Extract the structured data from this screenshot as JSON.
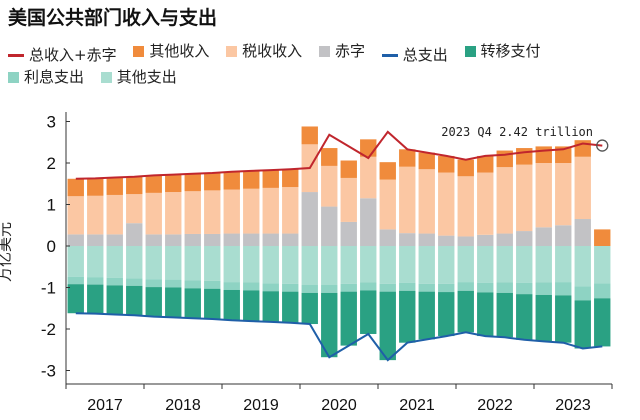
{
  "chart_data": {
    "type": "bar",
    "title": "美国公共部门收入与支出",
    "ylabel": "万亿美元",
    "xlabel": "",
    "ylim": [
      -3.3,
      3.3
    ],
    "yticks": [
      -3,
      -2,
      -1,
      0,
      1,
      2,
      3
    ],
    "years": [
      "2017",
      "2018",
      "2019",
      "2020",
      "2021",
      "2022",
      "2023"
    ],
    "quarters": [
      "2017Q1",
      "2017Q2",
      "2017Q3",
      "2017Q4",
      "2018Q1",
      "2018Q2",
      "2018Q3",
      "2018Q4",
      "2019Q1",
      "2019Q2",
      "2019Q3",
      "2019Q4",
      "2020Q1",
      "2020Q2",
      "2020Q3",
      "2020Q4",
      "2021Q1",
      "2021Q2",
      "2021Q3",
      "2021Q4",
      "2022Q1",
      "2022Q2",
      "2022Q3",
      "2022Q4",
      "2023Q1",
      "2023Q2",
      "2023Q3",
      "2023Q4"
    ],
    "grid": false,
    "legend_position": "top",
    "annotation": "2023 Q4 2.42 trillion",
    "series": [
      {
        "name": "总收入+赤字",
        "kind": "line",
        "color": "#c0262d",
        "values": [
          1.62,
          1.63,
          1.65,
          1.67,
          1.7,
          1.72,
          1.74,
          1.76,
          1.79,
          1.81,
          1.83,
          1.85,
          1.88,
          2.68,
          2.4,
          2.12,
          2.75,
          2.33,
          2.25,
          2.17,
          2.08,
          2.17,
          2.2,
          2.26,
          2.3,
          2.33,
          2.47,
          2.42
        ]
      },
      {
        "name": "其他收入",
        "kind": "bar",
        "color": "#f08b3c",
        "values": [
          0.42,
          0.42,
          0.42,
          0.42,
          0.42,
          0.42,
          0.42,
          0.42,
          0.43,
          0.43,
          0.43,
          0.43,
          0.43,
          0.43,
          0.42,
          0.42,
          0.42,
          0.42,
          0.4,
          0.4,
          0.4,
          0.4,
          0.4,
          0.4,
          0.4,
          0.4,
          0.4,
          0.4
        ]
      },
      {
        "name": "税收收入",
        "kind": "bar",
        "color": "#fbc7a3",
        "values": [
          0.92,
          0.93,
          0.95,
          0.7,
          1.0,
          1.02,
          1.03,
          1.05,
          1.06,
          1.08,
          1.1,
          1.12,
          1.15,
          0.98,
          1.06,
          1.0,
          1.2,
          1.6,
          1.55,
          1.52,
          1.45,
          1.5,
          1.6,
          1.6,
          1.55,
          1.5,
          1.5,
          0.0
        ]
      },
      {
        "name": "赤字",
        "kind": "bar",
        "color": "#c2c2c5",
        "values": [
          0.28,
          0.28,
          0.28,
          0.55,
          0.28,
          0.28,
          0.29,
          0.29,
          0.3,
          0.3,
          0.3,
          0.3,
          1.3,
          0.95,
          0.58,
          1.15,
          0.4,
          0.31,
          0.3,
          0.25,
          0.23,
          0.27,
          0.3,
          0.36,
          0.45,
          0.5,
          0.65,
          0.0
        ]
      },
      {
        "name": "总支出",
        "kind": "line",
        "color": "#1f5fa8",
        "values": [
          -1.62,
          -1.63,
          -1.65,
          -1.67,
          -1.7,
          -1.72,
          -1.74,
          -1.76,
          -1.79,
          -1.81,
          -1.83,
          -1.85,
          -1.88,
          -2.68,
          -2.4,
          -2.12,
          -2.75,
          -2.33,
          -2.25,
          -2.17,
          -2.08,
          -2.17,
          -2.2,
          -2.26,
          -2.3,
          -2.33,
          -2.47,
          -2.42
        ]
      },
      {
        "name": "转移支付",
        "kind": "bar",
        "color": "#2aa183",
        "values": [
          -0.7,
          -0.7,
          -0.7,
          -0.71,
          -0.71,
          -0.72,
          -0.72,
          -0.73,
          -0.73,
          -0.74,
          -0.74,
          -0.75,
          -0.75,
          -1.55,
          -1.3,
          -1.05,
          -1.65,
          -1.25,
          -1.15,
          -1.06,
          -1.0,
          -1.05,
          -1.07,
          -1.1,
          -1.12,
          -1.14,
          -1.16,
          -1.16
        ]
      },
      {
        "name": "利息支出",
        "kind": "bar",
        "color": "#8ed3c3",
        "values": [
          -0.18,
          -0.18,
          -0.18,
          -0.18,
          -0.19,
          -0.19,
          -0.19,
          -0.19,
          -0.19,
          -0.19,
          -0.19,
          -0.19,
          -0.19,
          -0.19,
          -0.19,
          -0.19,
          -0.19,
          -0.19,
          -0.19,
          -0.2,
          -0.21,
          -0.23,
          -0.25,
          -0.27,
          -0.3,
          -0.32,
          -0.34,
          -0.36
        ]
      },
      {
        "name": "其他支出",
        "kind": "bar",
        "color": "#a9ddd0",
        "values": [
          -0.74,
          -0.75,
          -0.77,
          -0.78,
          -0.8,
          -0.81,
          -0.83,
          -0.84,
          -0.87,
          -0.88,
          -0.9,
          -0.91,
          -0.94,
          -0.94,
          -0.91,
          -0.88,
          -0.91,
          -0.89,
          -0.91,
          -0.91,
          -0.87,
          -0.89,
          -0.88,
          -0.89,
          -0.88,
          -0.87,
          -0.97,
          -0.9
        ]
      }
    ]
  }
}
